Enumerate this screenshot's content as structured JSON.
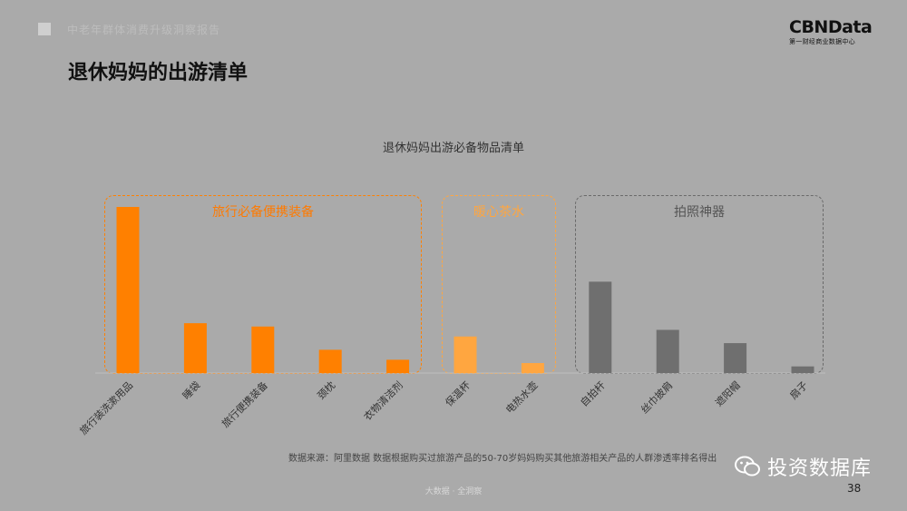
{
  "header": {
    "subtitle_faint": "中老年群体消费升级洞察报告",
    "logo_main": "CBNData",
    "logo_sub": "第一财经商业数据中心"
  },
  "page_title": "退休妈妈的出游清单",
  "groups": [
    {
      "label": "旅行必备便携装备"
    },
    {
      "label": "暖心茶水"
    },
    {
      "label": "拍照神器"
    }
  ],
  "chart_data": {
    "type": "bar",
    "title": "退休妈妈出游必备物品清单",
    "categories": [
      "旅行装洗漱用品",
      "睡袋",
      "旅行便携装备",
      "颈枕",
      "衣物清洁剂",
      "保温杯",
      "电热水壶",
      "自拍杆",
      "丝巾披肩",
      "遮阳帽",
      "扇子"
    ],
    "values": [
      100,
      30,
      28,
      14,
      8,
      22,
      6,
      55,
      26,
      18,
      4
    ],
    "group_of_category": [
      0,
      0,
      0,
      0,
      0,
      1,
      1,
      2,
      2,
      2,
      2
    ],
    "ylim": [
      0,
      100
    ],
    "grid": false,
    "colors": {
      "group0": "#ff8000",
      "group1": "#ffa640",
      "group2": "#6f6f6f"
    }
  },
  "source_note": "数据来源：阿里数据    数据根据购买过旅游产品的50-70岁妈妈购买其他旅游相关产品的人群渗透率排名得出",
  "footer": "大数据 · 全洞察",
  "page_number": "38",
  "watermark": {
    "text": "投资数据库",
    "icon": "wechat-icon"
  }
}
